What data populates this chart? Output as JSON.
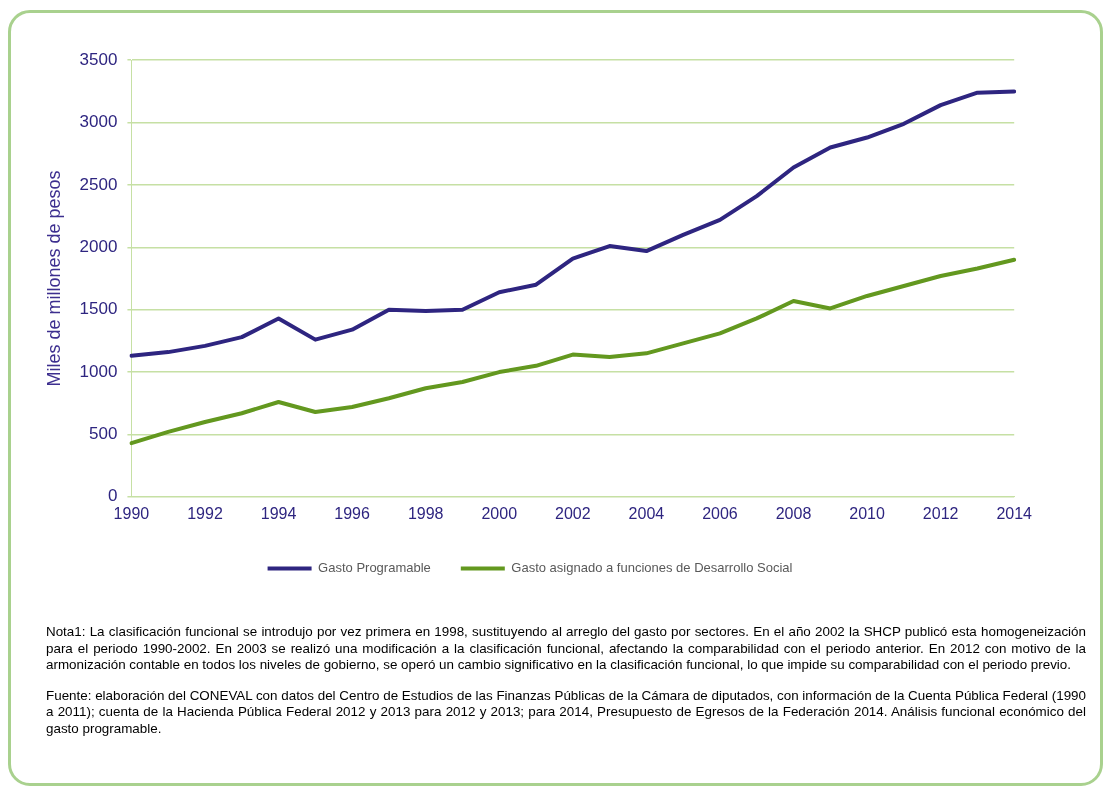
{
  "chart_data": {
    "type": "line",
    "ylabel": "Miles de millones de pesos",
    "categories": [
      "1990",
      null,
      "1992",
      null,
      "1994",
      null,
      "1996",
      null,
      "1998",
      null,
      "2000",
      null,
      "2002",
      null,
      "2004",
      null,
      "2006",
      null,
      "2008",
      null,
      "2010",
      null,
      "2012",
      null,
      "2014"
    ],
    "series": [
      {
        "name": "Gasto Programable",
        "color": "#2e2580",
        "values": [
          1130,
          1160,
          1210,
          1280,
          1430,
          1260,
          1340,
          1500,
          1490,
          1500,
          1640,
          1700,
          1910,
          2010,
          1970,
          2100,
          2220,
          2410,
          2640,
          2800,
          2880,
          2990,
          3140,
          3240,
          3250
        ]
      },
      {
        "name": "Gasto asignado a funciones de Desarrollo Social",
        "color": "#63981f",
        "values": [
          430,
          520,
          600,
          670,
          760,
          680,
          720,
          790,
          870,
          920,
          1000,
          1050,
          1140,
          1120,
          1150,
          1230,
          1310,
          1430,
          1570,
          1510,
          1610,
          1690,
          1770,
          1830,
          1900
        ]
      }
    ],
    "ylim": [
      0,
      3500
    ],
    "yticks": [
      0,
      500,
      1000,
      1500,
      2000,
      2500,
      3000,
      3500
    ],
    "grid": "y",
    "legend": "bottom",
    "marker": "none",
    "line_style": "solid",
    "annotations": [
      "Nota1: La clasificación funcional se introdujo por vez primera en 1998, sustituyendo al arreglo del gasto por sectores. En el año 2002 la SHCP publicó esta homogeneización para el periodo 1990-2002. En 2003 se realizó una modificación a la clasificación funcional, afectando la comparabilidad con el periodo anterior. En 2012 con motivo de la armonización contable en todos los niveles de gobierno, se operó un cambio significativo en la clasificación funcional, lo que impide su comparabilidad con el periodo previo.",
      "Fuente: elaboración del CONEVAL con datos del Centro de Estudios de las Finanzas Públicas de la Cámara de diputados, con información de la Cuenta Pública Federal (1990 a 2011); cuenta de la Hacienda Pública Federal 2012 y 2013 para 2012 y 2013; para  2014, Presupuesto de Egresos de la Federación 2014. Análisis funcional económico del gasto programable."
    ]
  }
}
